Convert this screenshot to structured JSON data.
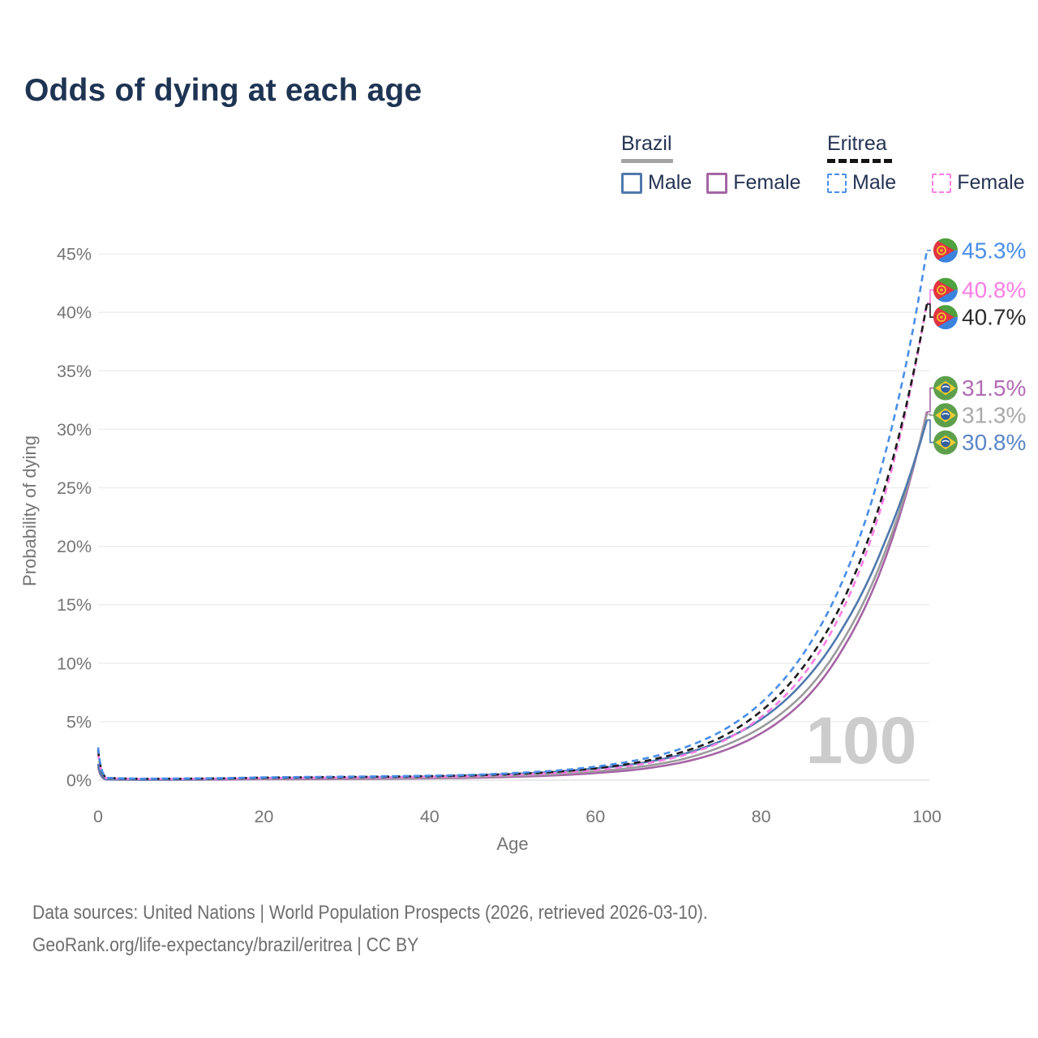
{
  "title": "Odds of dying at each age",
  "legend": {
    "groups": [
      {
        "name": "Brazil",
        "underline": {
          "style": "solid",
          "color": "#a3a3a3"
        },
        "items": [
          {
            "label": "Male",
            "color": "#5079ad",
            "dashed": false
          },
          {
            "label": "Female",
            "color": "#a565a5",
            "dashed": false
          }
        ]
      },
      {
        "name": "Eritrea",
        "underline": {
          "style": "dashed",
          "color": "#141414"
        },
        "items": [
          {
            "label": "Male",
            "color": "#4a8ee8",
            "dashed": true
          },
          {
            "label": "Female",
            "color": "#fb7ee3",
            "dashed": true
          }
        ]
      }
    ]
  },
  "chart_data": {
    "type": "line",
    "title": "Odds of dying at each age",
    "xlabel": "Age",
    "ylabel": "Probability of dying",
    "xlim": [
      0,
      100
    ],
    "ylim": [
      0,
      46
    ],
    "grid": true,
    "legend_position": "top-right",
    "x_ticks": [
      0,
      20,
      40,
      60,
      80,
      100
    ],
    "y_ticks": [
      0,
      5,
      10,
      15,
      20,
      25,
      30,
      35,
      40,
      45
    ],
    "y_tick_labels": [
      "0%",
      "5%",
      "10%",
      "15%",
      "20%",
      "25%",
      "30%",
      "35%",
      "40%",
      "45%"
    ],
    "watermark": "100",
    "x": [
      0,
      1,
      5,
      10,
      15,
      20,
      25,
      30,
      35,
      40,
      45,
      50,
      55,
      60,
      65,
      70,
      75,
      80,
      85,
      90,
      95,
      100
    ],
    "series": [
      {
        "name": "Brazil Female",
        "country": "Brazil",
        "sex": "Female",
        "flag": "brazil",
        "color": "#a565a5",
        "label_color": "#b36cb3",
        "dashed": false,
        "end_label": "31.5%",
        "end_value": 31.5,
        "values": [
          1.1,
          0.05,
          0.03,
          0.04,
          0.05,
          0.07,
          0.08,
          0.1,
          0.12,
          0.15,
          0.2,
          0.28,
          0.4,
          0.6,
          0.9,
          1.45,
          2.4,
          4.0,
          6.7,
          11.4,
          19.0,
          31.5
        ]
      },
      {
        "name": "Brazil",
        "country": "Brazil",
        "sex": "All",
        "flag": "brazil",
        "color": "#9b9b9b",
        "label_color": "#a9a9a9",
        "dashed": false,
        "end_label": "31.3%",
        "end_value": 31.3,
        "values": [
          1.25,
          0.06,
          0.04,
          0.05,
          0.09,
          0.11,
          0.13,
          0.15,
          0.17,
          0.21,
          0.28,
          0.38,
          0.52,
          0.75,
          1.1,
          1.7,
          2.8,
          4.5,
          7.3,
          12.1,
          19.6,
          31.3
        ]
      },
      {
        "name": "Brazil Male",
        "country": "Brazil",
        "sex": "Male",
        "flag": "brazil",
        "color": "#5079ad",
        "label_color": "#5b86c8",
        "dashed": false,
        "end_label": "30.8%",
        "end_value": 30.8,
        "values": [
          1.4,
          0.07,
          0.05,
          0.06,
          0.1,
          0.17,
          0.2,
          0.22,
          0.25,
          0.3,
          0.4,
          0.52,
          0.7,
          1.0,
          1.4,
          2.1,
          3.3,
          5.2,
          8.3,
          13.2,
          20.5,
          30.8
        ]
      },
      {
        "name": "Eritrea Female",
        "country": "Eritrea",
        "sex": "Female",
        "flag": "eritrea",
        "color": "#fb7ee3",
        "label_color": "#fb7ee3",
        "dashed": true,
        "end_label": "40.8%",
        "end_value": 40.8,
        "values": [
          2.3,
          0.16,
          0.1,
          0.11,
          0.13,
          0.17,
          0.2,
          0.22,
          0.25,
          0.28,
          0.33,
          0.44,
          0.6,
          0.85,
          1.3,
          2.0,
          3.2,
          5.4,
          8.9,
          14.8,
          24.6,
          40.8
        ]
      },
      {
        "name": "Eritrea",
        "country": "Eritrea",
        "sex": "All",
        "flag": "eritrea",
        "color": "#1c1c1c",
        "label_color": "#2d2d2d",
        "dashed": true,
        "end_label": "40.7%",
        "end_value": 40.7,
        "values": [
          2.6,
          0.18,
          0.11,
          0.12,
          0.15,
          0.21,
          0.24,
          0.27,
          0.3,
          0.34,
          0.4,
          0.52,
          0.7,
          1.0,
          1.5,
          2.3,
          3.6,
          5.9,
          9.6,
          15.5,
          25.2,
          40.7
        ]
      },
      {
        "name": "Eritrea Male",
        "country": "Eritrea",
        "sex": "Male",
        "flag": "eritrea",
        "color": "#4a8ee8",
        "label_color": "#4a8ee8",
        "dashed": true,
        "end_label": "45.3%",
        "end_value": 45.3,
        "values": [
          2.8,
          0.2,
          0.12,
          0.14,
          0.17,
          0.24,
          0.27,
          0.3,
          0.33,
          0.38,
          0.45,
          0.6,
          0.8,
          1.15,
          1.7,
          2.6,
          4.1,
          6.6,
          10.7,
          17.3,
          28.0,
          45.3
        ]
      }
    ]
  },
  "footer": {
    "line1": "Data sources: United Nations | World Population Prospects (2026, retrieved 2026-03-10).",
    "line2": "GeoRank.org/life-expectancy/brazil/eritrea | CC BY"
  }
}
